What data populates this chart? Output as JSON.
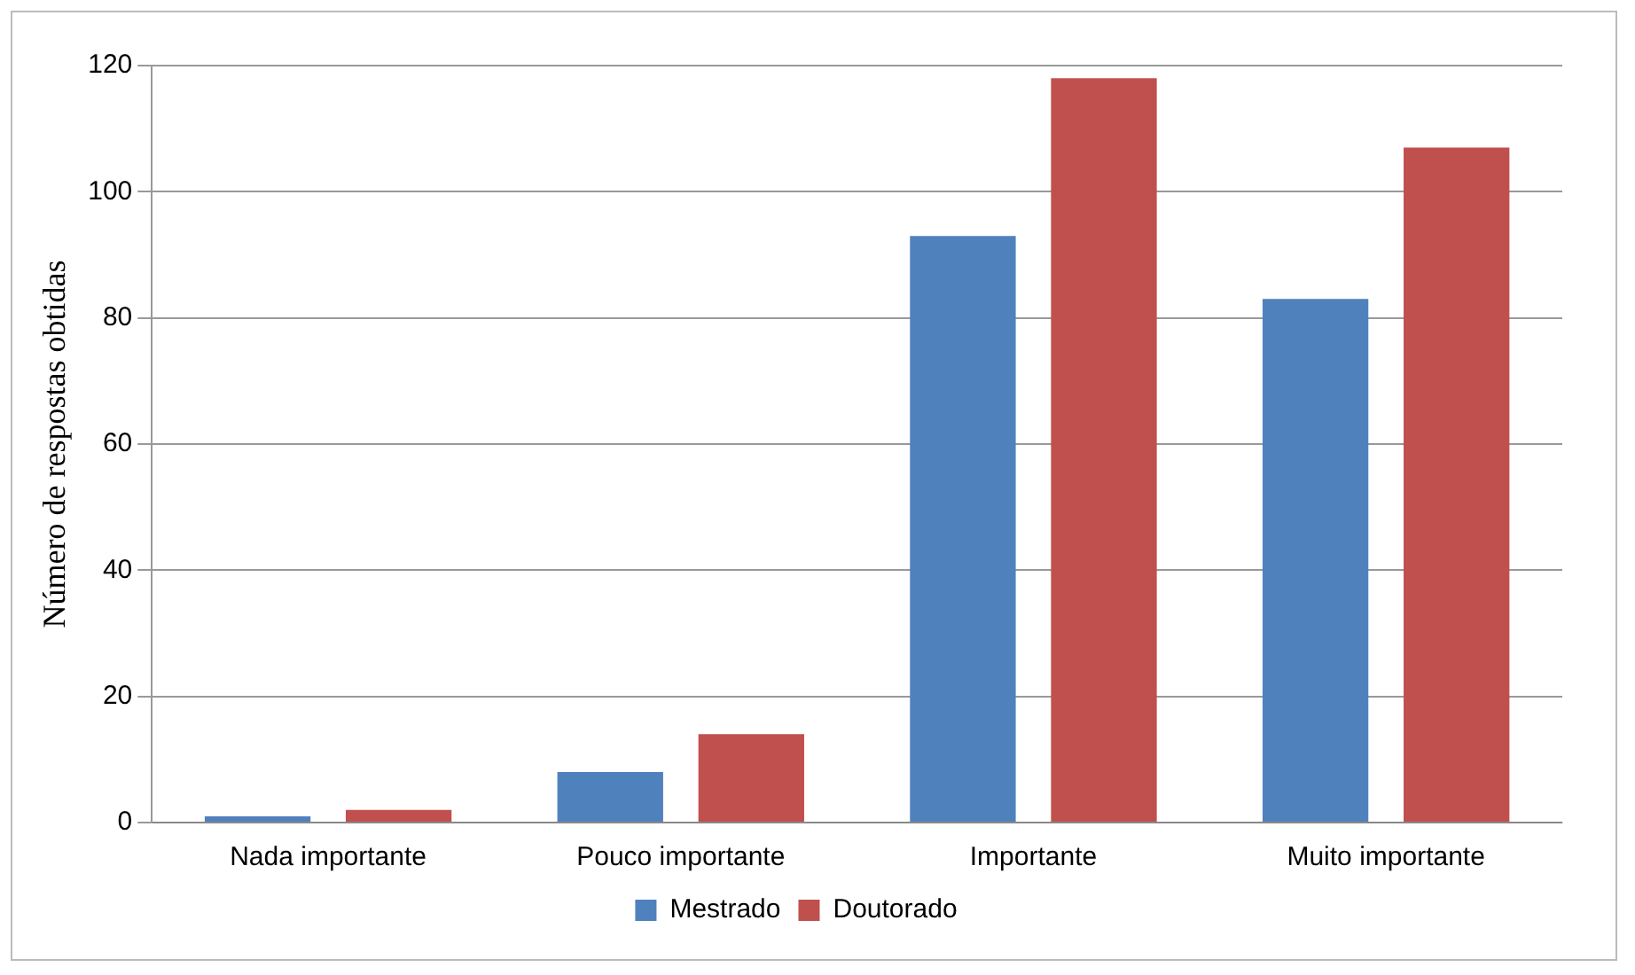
{
  "chart_data": {
    "type": "bar",
    "ylabel": "Número de respostas obtidas",
    "categories": [
      "Nada importante",
      "Pouco importante",
      "Importante",
      "Muito importante"
    ],
    "series": [
      {
        "name": "Mestrado",
        "color": "#4f81bd",
        "values": [
          1,
          8,
          93,
          83
        ]
      },
      {
        "name": "Doutorado",
        "color": "#c0504d",
        "values": [
          2,
          14,
          118,
          107
        ]
      }
    ],
    "ylim": [
      0,
      120
    ],
    "yticks": [
      0,
      20,
      40,
      60,
      80,
      100,
      120
    ],
    "grid": "y",
    "legend": "bottom"
  }
}
